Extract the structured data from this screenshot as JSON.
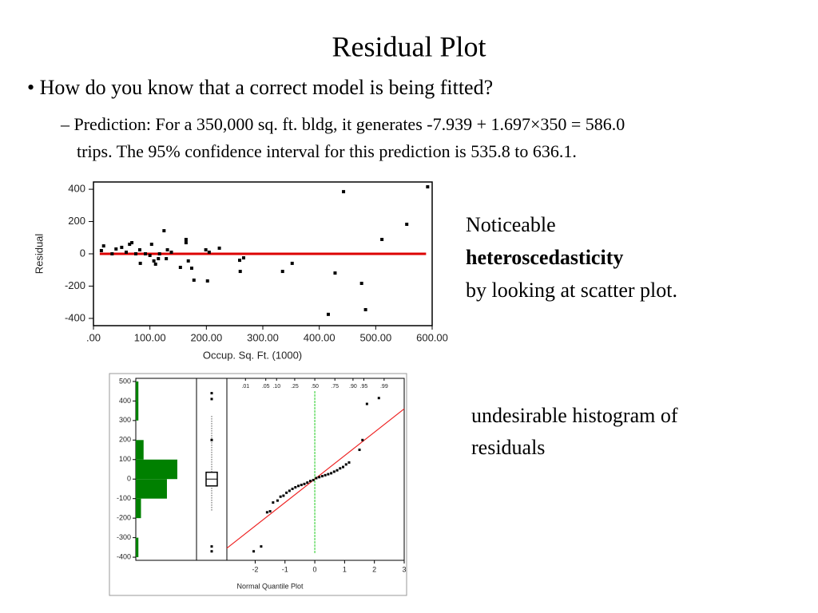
{
  "title": "Residual Plot",
  "bullet": "• How do you know that a correct model is being fitted?",
  "sub_bullet": [
    "– Prediction: For a 350,000 sq. ft. bldg, it generates -7.939 + 1.697×350 = 586.0",
    "trips. The 95% confidence interval for this prediction is 535.8 to 636.1."
  ],
  "note_scatter": [
    "Noticeable",
    "heteroscedasticity",
    "by looking at scatter plot."
  ],
  "note_histogram": [
    "undesirable histogram of",
    "residuals"
  ],
  "chart_data": [
    {
      "type": "scatter",
      "y_label": "Residual",
      "x_label": "Occup. Sq. Ft. (1000)",
      "xlim": [
        0,
        600
      ],
      "ylim": [
        -445,
        445
      ],
      "xticks": [
        {
          "value": 0,
          "label": ".00"
        },
        {
          "value": 100,
          "label": "100.00"
        },
        {
          "value": 200,
          "label": "200.00"
        },
        {
          "value": 300,
          "label": "300.00"
        },
        {
          "value": 400,
          "label": "400.00"
        },
        {
          "value": 500,
          "label": "500.00"
        },
        {
          "value": 600,
          "label": "600.00"
        }
      ],
      "yticks": [
        400,
        200,
        0,
        -200,
        -400
      ],
      "color": "#000000",
      "hline": 0,
      "hline_color": "#dd0000",
      "x": [
        14,
        18,
        33,
        40,
        50,
        58,
        64,
        68,
        75,
        82,
        83,
        92,
        100,
        103,
        107,
        110,
        115,
        117,
        125,
        129,
        131,
        138,
        154,
        164,
        164,
        168,
        174,
        178,
        199,
        202,
        205,
        223,
        259,
        260,
        266,
        335,
        352,
        416,
        428,
        443,
        475,
        482,
        511,
        555,
        592
      ],
      "y": [
        20,
        49,
        0,
        30,
        40,
        10,
        59,
        69,
        0,
        25,
        -59,
        0,
        -10,
        59,
        -44,
        -64,
        -30,
        0,
        143,
        -30,
        25,
        10,
        -84,
        89,
        69,
        -44,
        -89,
        -163,
        25,
        -168,
        10,
        35,
        -40,
        -109,
        -25,
        -109,
        -59,
        -375,
        -119,
        385,
        -183,
        -346,
        89,
        183,
        415
      ]
    },
    {
      "type": "histogram",
      "color": "#008000",
      "xlim": [
        0,
        23.4
      ],
      "ylim": [
        -416,
        516
      ],
      "yticks": [
        500,
        400,
        300,
        200,
        100,
        0,
        -100,
        -200,
        -300,
        -400
      ],
      "bins": [
        -400,
        -300,
        -200,
        -100,
        0,
        100,
        200,
        300,
        400,
        500
      ],
      "values": [
        1,
        0,
        2,
        12,
        16,
        3,
        0,
        1,
        1
      ]
    },
    {
      "type": "box",
      "ylim": [
        -416,
        516
      ],
      "q1": -35,
      "median": 0,
      "q3": 35,
      "whisker_low": -160,
      "whisker_high": 330,
      "outliers": [
        440,
        410,
        200,
        -345,
        -370
      ]
    },
    {
      "type": "qq",
      "x_label": "Normal Quantile Plot",
      "xlim": [
        -2.95,
        3
      ],
      "ylim": [
        -416,
        516
      ],
      "xticks": [
        -2,
        -1,
        0,
        1,
        2,
        3
      ],
      "top_ticks": [
        {
          "value": -2.326,
          "label": ".01"
        },
        {
          "value": -1.645,
          "label": ".05"
        },
        {
          "value": -1.282,
          "label": ".10"
        },
        {
          "value": -0.674,
          "label": ".25"
        },
        {
          "value": 0,
          "label": ".50"
        },
        {
          "value": 0.674,
          "label": ".75"
        },
        {
          "value": 1.282,
          "label": ".90"
        },
        {
          "value": 1.645,
          "label": ".95"
        },
        {
          "value": 2.326,
          "label": ".99"
        }
      ],
      "vline": 0,
      "vline_color": "#22cc22",
      "fit_line": {
        "intercept": 0,
        "slope": 120,
        "color": "#ee2222"
      },
      "x": [
        -2.05,
        -1.8,
        -1.6,
        -1.5,
        -1.4,
        -1.25,
        -1.15,
        -1.05,
        -0.95,
        -0.85,
        -0.75,
        -0.65,
        -0.55,
        -0.45,
        -0.35,
        -0.25,
        -0.15,
        -0.05,
        0.05,
        0.15,
        0.25,
        0.35,
        0.45,
        0.55,
        0.65,
        0.75,
        0.85,
        0.95,
        1.05,
        1.15,
        1.5,
        1.6,
        1.75,
        2.15
      ],
      "y": [
        -370,
        -345,
        -170,
        -165,
        -120,
        -110,
        -90,
        -85,
        -70,
        -60,
        -50,
        -42,
        -35,
        -30,
        -25,
        -18,
        -10,
        -5,
        5,
        10,
        15,
        20,
        25,
        30,
        38,
        45,
        55,
        62,
        75,
        85,
        150,
        200,
        385,
        415
      ]
    }
  ]
}
